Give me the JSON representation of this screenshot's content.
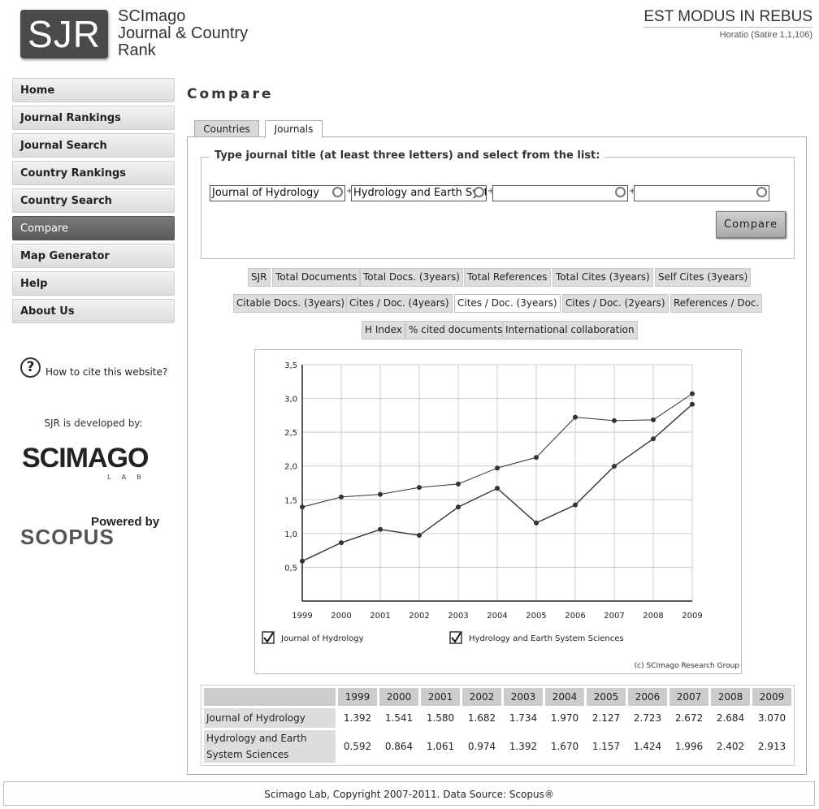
{
  "header": {
    "logo_text": "SJR",
    "title_line1": "SCImago",
    "title_line2": "Journal & Country",
    "title_line3": "Rank",
    "motto": "EST MODUS IN REBUS",
    "motto_source": "Horatio (Satire 1,1,106)"
  },
  "sidebar": {
    "items": [
      {
        "label": "Home"
      },
      {
        "label": "Journal Rankings"
      },
      {
        "label": "Journal Search"
      },
      {
        "label": "Country Rankings"
      },
      {
        "label": "Country Search"
      },
      {
        "label": "Compare"
      },
      {
        "label": "Map Generator"
      },
      {
        "label": "Help"
      },
      {
        "label": "About Us"
      }
    ],
    "active": "Compare",
    "cite_icon": "?",
    "cite_text": "How to cite this website?",
    "developed_by": "SJR is developed by:",
    "scimago_logo": "SCIMAGO",
    "scimago_sub": "LAB",
    "powered_by": "Powered by",
    "scopus_logo": "SCOPUS"
  },
  "main": {
    "page_title": "Compare",
    "tabs": [
      {
        "label": "Countries"
      },
      {
        "label": "Journals"
      }
    ],
    "active_tab": "Journals",
    "search_legend": "Type journal title (at least three letters) and select from the list:",
    "inputs": [
      {
        "value": "Journal of Hydrology"
      },
      {
        "value": "Hydrology and Earth System Sciences"
      },
      {
        "value": ""
      },
      {
        "value": ""
      }
    ],
    "plus": "+",
    "compare_label": "Compare",
    "indicators_row1": [
      "SJR",
      "Total Documents",
      "Total Docs. (3years)",
      "Total References",
      "Total Cites (3years)",
      "Self Cites (3years)"
    ],
    "indicators_row2": [
      "Citable Docs. (3years)",
      "Cites / Doc. (4years)",
      "Cites / Doc. (3years)",
      "Cites / Doc. (2years)",
      "References / Doc."
    ],
    "indicators_row3": [
      "H Index",
      "% cited documents",
      "International collaboration"
    ],
    "selected_indicator": "Cites / Doc. (3years)"
  },
  "chart_data": {
    "type": "line",
    "x": [
      "1999",
      "2000",
      "2001",
      "2002",
      "2003",
      "2004",
      "2005",
      "2006",
      "2007",
      "2008",
      "2009"
    ],
    "series": [
      {
        "name": "Journal of Hydrology",
        "values": [
          1.392,
          1.541,
          1.58,
          1.682,
          1.734,
          1.97,
          2.127,
          2.723,
          2.672,
          2.684,
          3.07
        ],
        "checked": true
      },
      {
        "name": "Hydrology and Earth System Sciences",
        "values": [
          0.592,
          0.864,
          1.061,
          0.974,
          1.392,
          1.67,
          1.157,
          1.424,
          1.996,
          2.402,
          2.913
        ],
        "checked": true
      }
    ],
    "ylim": [
      0,
      3.5
    ],
    "y_ticks": [
      "0,5",
      "1,0",
      "1,5",
      "2,0",
      "2,5",
      "3,0",
      "3,5"
    ],
    "grid": true,
    "legend_position": "bottom",
    "credit": "(c) SCImago Research Group",
    "line_color": "#333333",
    "grid_color": "#cccccc"
  },
  "table": {
    "years": [
      "1999",
      "2000",
      "2001",
      "2002",
      "2003",
      "2004",
      "2005",
      "2006",
      "2007",
      "2008",
      "2009"
    ],
    "rows": [
      {
        "label": "Journal of Hydrology",
        "values": [
          "1.392",
          "1.541",
          "1.580",
          "1.682",
          "1.734",
          "1.970",
          "2.127",
          "2.723",
          "2.672",
          "2.684",
          "3.070"
        ]
      },
      {
        "label": "Hydrology and Earth System Sciences",
        "values": [
          "0.592",
          "0.864",
          "1.061",
          "0.974",
          "1.392",
          "1.670",
          "1.157",
          "1.424",
          "1.996",
          "2.402",
          "2.913"
        ]
      }
    ]
  },
  "footer": {
    "text": "Scimago Lab, Copyright 2007-2011. Data Source: Scopus®"
  }
}
